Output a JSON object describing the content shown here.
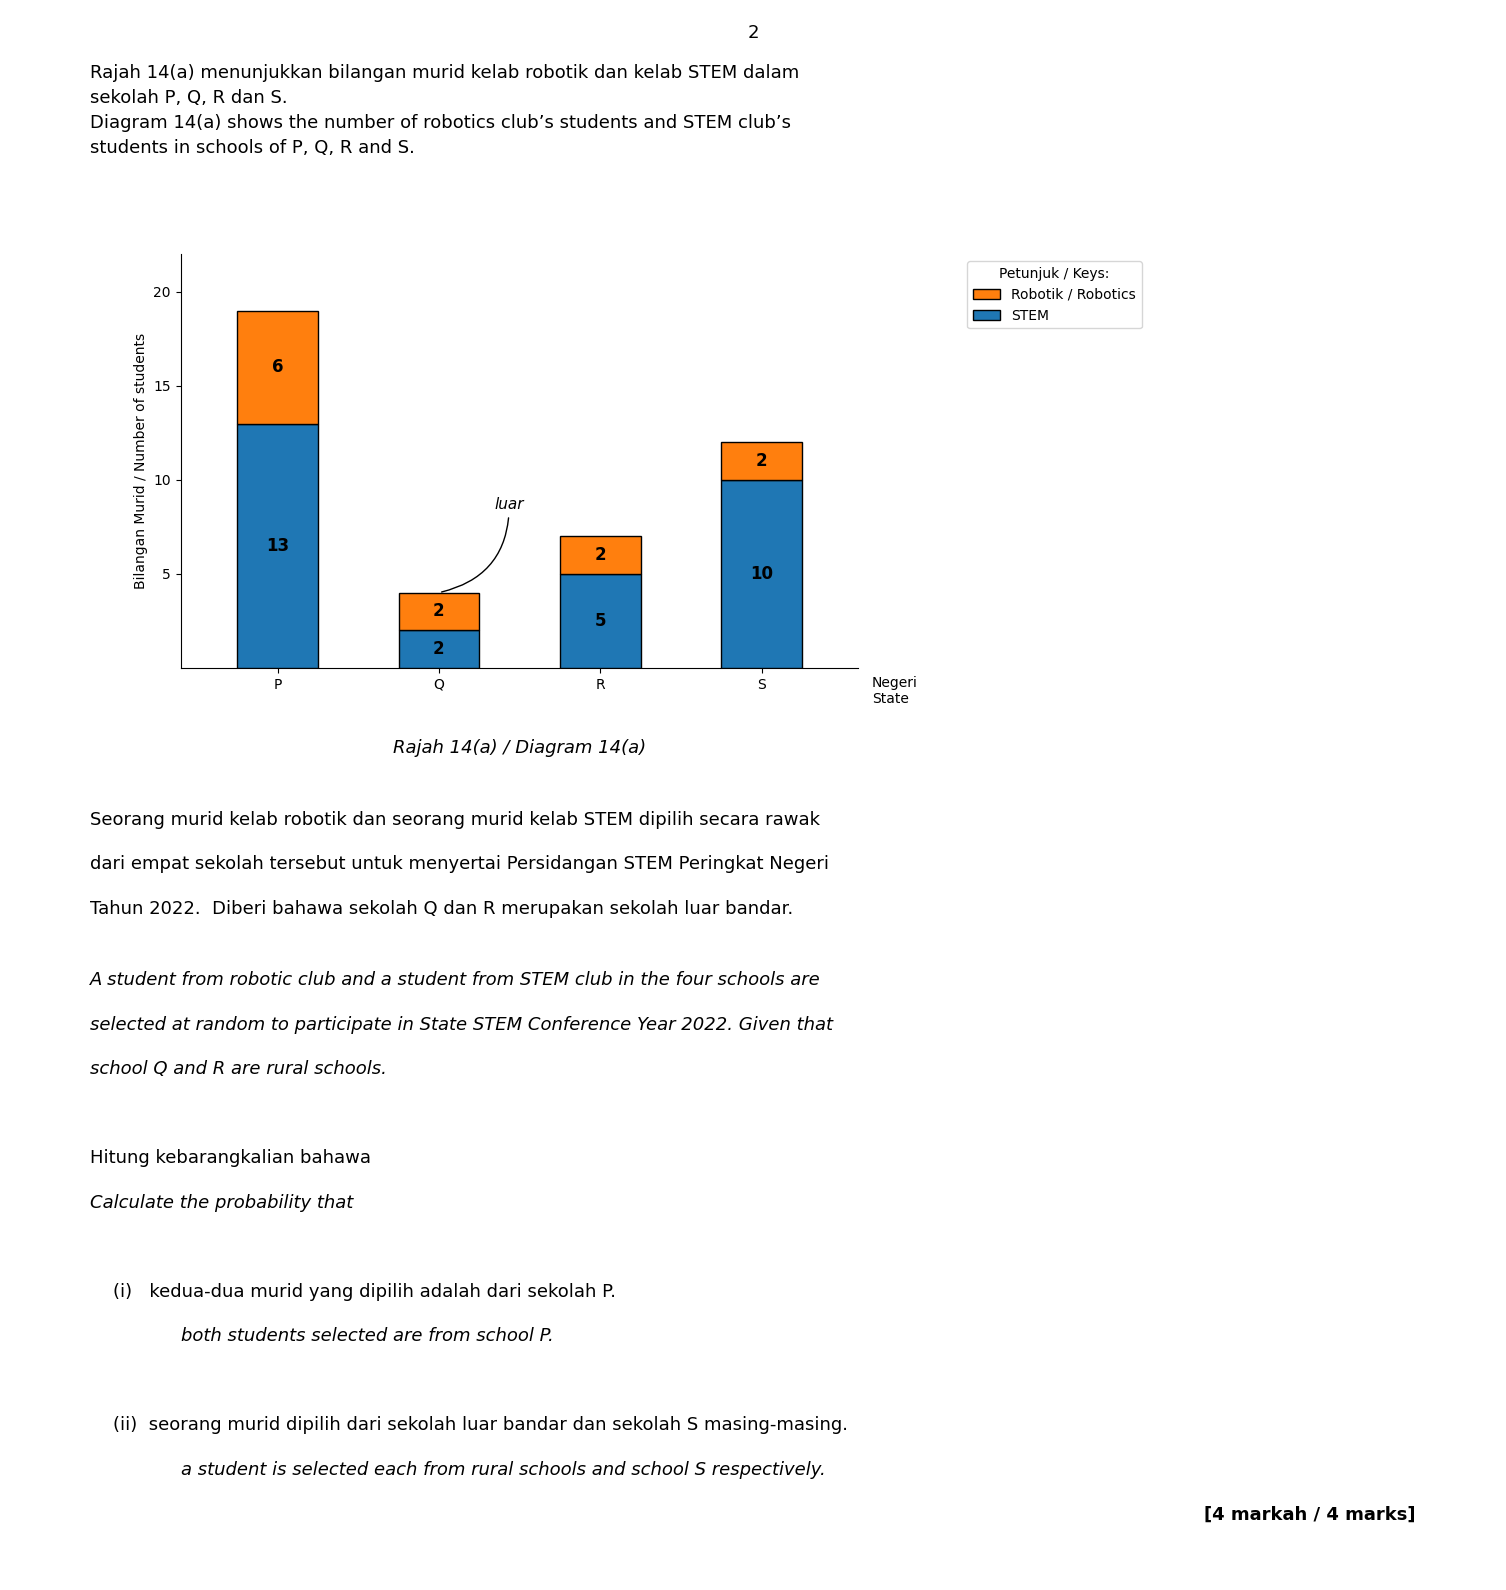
{
  "chart_data": {
    "type": "bar",
    "title": "Rajah 14(a) / Diagram 14(a)",
    "subtitle": "Rajah 14(a) menunjukkan bilangan murid kelab robotik dan kelab STEM dalam\nsekolah P, Q, R dan S.\nDiagram 14(a) shows the number of robotics club’s students and STEM club’s\nstudents in schools of P, Q, R and S.",
    "xlabel": "Negeri\nState",
    "ylabel": "Bilangan Murid / Number of students",
    "categories": [
      "P",
      "Q",
      "R",
      "S"
    ],
    "series": [
      {
        "name": "STEM",
        "values": [
          13,
          2,
          5,
          10
        ]
      },
      {
        "name": "Robotik / Robotics",
        "values": [
          6,
          2,
          2,
          2
        ]
      }
    ],
    "stacked": true,
    "data_labels": true,
    "legend": "upper left",
    "grid": false,
    "ylim": [
      0,
      22
    ],
    "yticks": [
      5,
      10,
      15,
      20
    ],
    "annotations": [
      "2",
      "luar",
      "Petunjuk / Keys:",
      "Seorang murid kelab robotik dan seorang murid kelab STEM dipilih secara rawak",
      "dari empat sekolah tersebut untuk menyertai Persidangan STEM Peringkat Negeri",
      "Tahun 2022.  Diberi bahawa sekolah Q dan R merupakan sekolah luar bandar.",
      "A student from robotic club and a student from STEM club in the four schools are",
      "selected at random to participate in State STEM Conference Year 2022. Given that",
      "school Q and R are rural schools.",
      "Hitung kebarangkalian bahawa",
      "Calculate the probability that",
      "(i)   kedua-dua murid yang dipilih adalah dari sekolah P.",
      "both students selected are from school P.",
      "(ii)  seorang murid dipilih dari sekolah luar bandar dan sekolah S masing-masing.",
      "a student is selected each from rural schools and school S respectively.",
      "[4 markah / 4 marks]"
    ]
  }
}
